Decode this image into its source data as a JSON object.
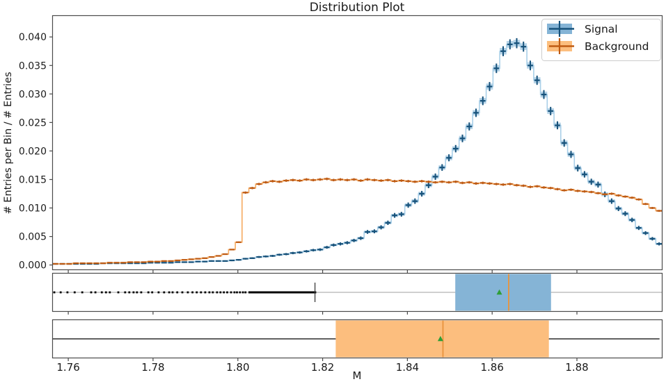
{
  "chart_data": {
    "type": "histogram+boxplot",
    "title": "Distribution Plot",
    "xlabel": "M",
    "ylabel": "# Entries per Bin / # Entries",
    "xlim": [
      1.7562,
      1.9002
    ],
    "ylim": [
      -0.0009,
      0.0438
    ],
    "grid": false,
    "x_ticks": [
      {
        "value": 1.76,
        "label": "1.76"
      },
      {
        "value": 1.78,
        "label": "1.78"
      },
      {
        "value": 1.8,
        "label": "1.80"
      },
      {
        "value": 1.82,
        "label": "1.82"
      },
      {
        "value": 1.84,
        "label": "1.84"
      },
      {
        "value": 1.86,
        "label": "1.86"
      },
      {
        "value": 1.88,
        "label": "1.88"
      }
    ],
    "y_ticks": [
      {
        "value": 0.0,
        "label": "0.000"
      },
      {
        "value": 0.005,
        "label": "0.005"
      },
      {
        "value": 0.01,
        "label": "0.010"
      },
      {
        "value": 0.015,
        "label": "0.015"
      },
      {
        "value": 0.02,
        "label": "0.020"
      },
      {
        "value": 0.025,
        "label": "0.025"
      },
      {
        "value": 0.03,
        "label": "0.030"
      },
      {
        "value": 0.035,
        "label": "0.035"
      },
      {
        "value": 0.04,
        "label": "0.040"
      }
    ],
    "bins": {
      "start": 1.7562,
      "width": 0.0016,
      "count": 90
    },
    "series": [
      {
        "name": "Signal",
        "style": "step-errorbar",
        "error_coef": 0.003,
        "values": [
          0.0002,
          0.0002,
          0.0002,
          0.0002,
          0.0002,
          0.0002,
          0.0002,
          0.0003,
          0.0003,
          0.0003,
          0.0003,
          0.0003,
          0.0003,
          0.0003,
          0.0004,
          0.0004,
          0.0004,
          0.0004,
          0.0005,
          0.0005,
          0.0005,
          0.0006,
          0.0006,
          0.0007,
          0.0007,
          0.0007,
          0.0008,
          0.0009,
          0.0011,
          0.0012,
          0.0014,
          0.0015,
          0.0016,
          0.0018,
          0.0019,
          0.0021,
          0.0022,
          0.0024,
          0.0026,
          0.0027,
          0.0031,
          0.0035,
          0.0037,
          0.0039,
          0.0043,
          0.0047,
          0.0058,
          0.0059,
          0.0066,
          0.0074,
          0.0087,
          0.0089,
          0.0105,
          0.0112,
          0.0125,
          0.014,
          0.0155,
          0.0171,
          0.0188,
          0.0204,
          0.0222,
          0.0243,
          0.0267,
          0.0288,
          0.0313,
          0.0345,
          0.0375,
          0.0387,
          0.0389,
          0.0383,
          0.035,
          0.0324,
          0.0299,
          0.027,
          0.0245,
          0.0214,
          0.0194,
          0.017,
          0.0159,
          0.0146,
          0.0141,
          0.0124,
          0.0112,
          0.0099,
          0.009,
          0.0079,
          0.0065,
          0.0056,
          0.0046,
          0.0037
        ]
      },
      {
        "name": "Background",
        "style": "step-errorbar",
        "error_coef": 0.0012,
        "values": [
          0.0002,
          0.0002,
          0.0002,
          0.0003,
          0.0003,
          0.0003,
          0.0003,
          0.0003,
          0.0004,
          0.0004,
          0.0004,
          0.0005,
          0.0005,
          0.0005,
          0.0006,
          0.0006,
          0.0007,
          0.0007,
          0.0008,
          0.0009,
          0.001,
          0.0011,
          0.0012,
          0.0014,
          0.0016,
          0.0019,
          0.0027,
          0.004,
          0.0127,
          0.0135,
          0.0142,
          0.0145,
          0.0147,
          0.0146,
          0.0148,
          0.0149,
          0.0148,
          0.015,
          0.0149,
          0.015,
          0.0151,
          0.0149,
          0.015,
          0.0149,
          0.015,
          0.0148,
          0.015,
          0.0149,
          0.0148,
          0.0149,
          0.0147,
          0.0148,
          0.0147,
          0.0146,
          0.0147,
          0.0146,
          0.0145,
          0.0146,
          0.0145,
          0.0146,
          0.0144,
          0.0145,
          0.0143,
          0.0144,
          0.0143,
          0.0142,
          0.0141,
          0.0142,
          0.014,
          0.0139,
          0.0137,
          0.0138,
          0.0136,
          0.0135,
          0.0133,
          0.0131,
          0.0132,
          0.013,
          0.0129,
          0.0128,
          0.0126,
          0.0124,
          0.0125,
          0.0122,
          0.012,
          0.0118,
          0.0115,
          0.0107,
          0.01,
          0.0095
        ]
      }
    ],
    "boxplots": [
      {
        "name": "Signal",
        "q1": 1.8513,
        "median": 1.8639,
        "q3": 1.8739,
        "whisker_low": 1.8182,
        "whisker_high": 1.8995,
        "mean": 1.8617,
        "fliers": [
          1.7567,
          1.7582,
          1.7598,
          1.7615,
          1.7633,
          1.7654,
          1.7664,
          1.7679,
          1.7689,
          1.7698,
          1.7718,
          1.7734,
          1.7744,
          1.7754,
          1.7762,
          1.7772,
          1.7789,
          1.7798,
          1.7813,
          1.7826,
          1.7838,
          1.7846,
          1.7857,
          1.7869,
          1.7882,
          1.7893,
          1.7903,
          1.7913,
          1.7923,
          1.7933,
          1.7941,
          1.7951,
          1.7959,
          1.7967,
          1.7975,
          1.7984,
          1.7992,
          1.7998,
          1.8005,
          1.8012,
          1.8018
        ],
        "flier_solid_range": [
          1.8025,
          1.8185
        ]
      },
      {
        "name": "Background",
        "q1": 1.8231,
        "median": 1.8484,
        "q3": 1.8734,
        "whisker_low": 1.7562,
        "whisker_high": 1.8995,
        "mean": 1.8478,
        "fliers": [],
        "flier_solid_range": null
      }
    ],
    "legend": {
      "position": "upper right"
    },
    "colors": {
      "signal_marker": "#17527b",
      "signal_step": "#a9cfe8",
      "signal_errorbox": "#a9cce4",
      "signal_box_fill": "#85b4d6",
      "background_marker": "#bf5b13",
      "background_step": "#f5ab61",
      "background_box_fill": "#fcbe7e",
      "median_line": "#e8933c",
      "mean_marker": "#2e9e37",
      "whisker_signal": "#c8c8c8",
      "whisker_background": "#4a4a4a",
      "flier": "#000000",
      "spine": "#4a4a4a",
      "text": "#1a1a1a"
    }
  }
}
